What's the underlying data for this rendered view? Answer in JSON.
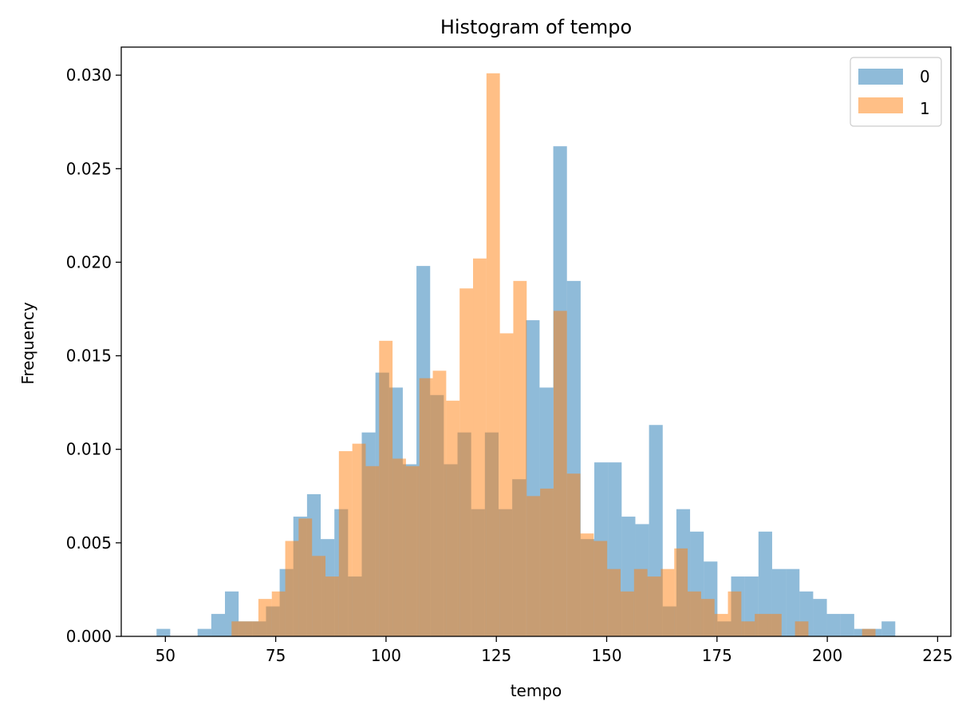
{
  "chart_data": {
    "type": "bar",
    "title": "Histogram of tempo",
    "xlabel": "tempo",
    "ylabel": "Frequency",
    "xlim": [
      40,
      228
    ],
    "ylim": [
      0,
      0.0315
    ],
    "xticks": [
      50,
      75,
      100,
      125,
      150,
      175,
      200,
      225
    ],
    "yticks": [
      "0.000",
      "0.005",
      "0.010",
      "0.015",
      "0.020",
      "0.025",
      "0.030"
    ],
    "grid": false,
    "legend_position": "top-right",
    "series": [
      {
        "name": "0",
        "color": "#1f77b4",
        "opacity": 0.5,
        "bin_start": 48.0,
        "bin_width": 3.1,
        "values": [
          0.0004,
          0,
          0,
          0.0004,
          0.0012,
          0.0024,
          0.0008,
          0.0008,
          0.0016,
          0.0036,
          0.0064,
          0.0076,
          0.0052,
          0.0068,
          0.0032,
          0.0109,
          0.0141,
          0.0133,
          0.0092,
          0.0198,
          0.0129,
          0.0092,
          0.0109,
          0.0068,
          0.0109,
          0.0068,
          0.0084,
          0.0169,
          0.0133,
          0.0262,
          0.019,
          0.0052,
          0.0093,
          0.0093,
          0.0064,
          0.006,
          0.0113,
          0.0016,
          0.0068,
          0.0056,
          0.004,
          0.0008,
          0.0032,
          0.0032,
          0.0056,
          0.0036,
          0.0036,
          0.0024,
          0.002,
          0.0012,
          0.0012,
          0.0004,
          0.0004,
          0.0008
        ]
      },
      {
        "name": "1",
        "color": "#ff7f0e",
        "opacity": 0.5,
        "bin_start": 65.0,
        "bin_width": 3.04,
        "values": [
          0.0008,
          0.0008,
          0.002,
          0.0024,
          0.0051,
          0.0063,
          0.0043,
          0.0032,
          0.0099,
          0.0103,
          0.0091,
          0.0158,
          0.0095,
          0.0091,
          0.0138,
          0.0142,
          0.0126,
          0.0186,
          0.0202,
          0.0301,
          0.0162,
          0.019,
          0.0075,
          0.0079,
          0.0174,
          0.0087,
          0.0055,
          0.0051,
          0.0036,
          0.0024,
          0.0036,
          0.0032,
          0.0036,
          0.0047,
          0.0024,
          0.002,
          0.0012,
          0.0024,
          0.0008,
          0.0012,
          0.0012,
          0.0,
          0.0008,
          0.0,
          0.0,
          0.0,
          0.0,
          0.0004
        ]
      }
    ]
  }
}
